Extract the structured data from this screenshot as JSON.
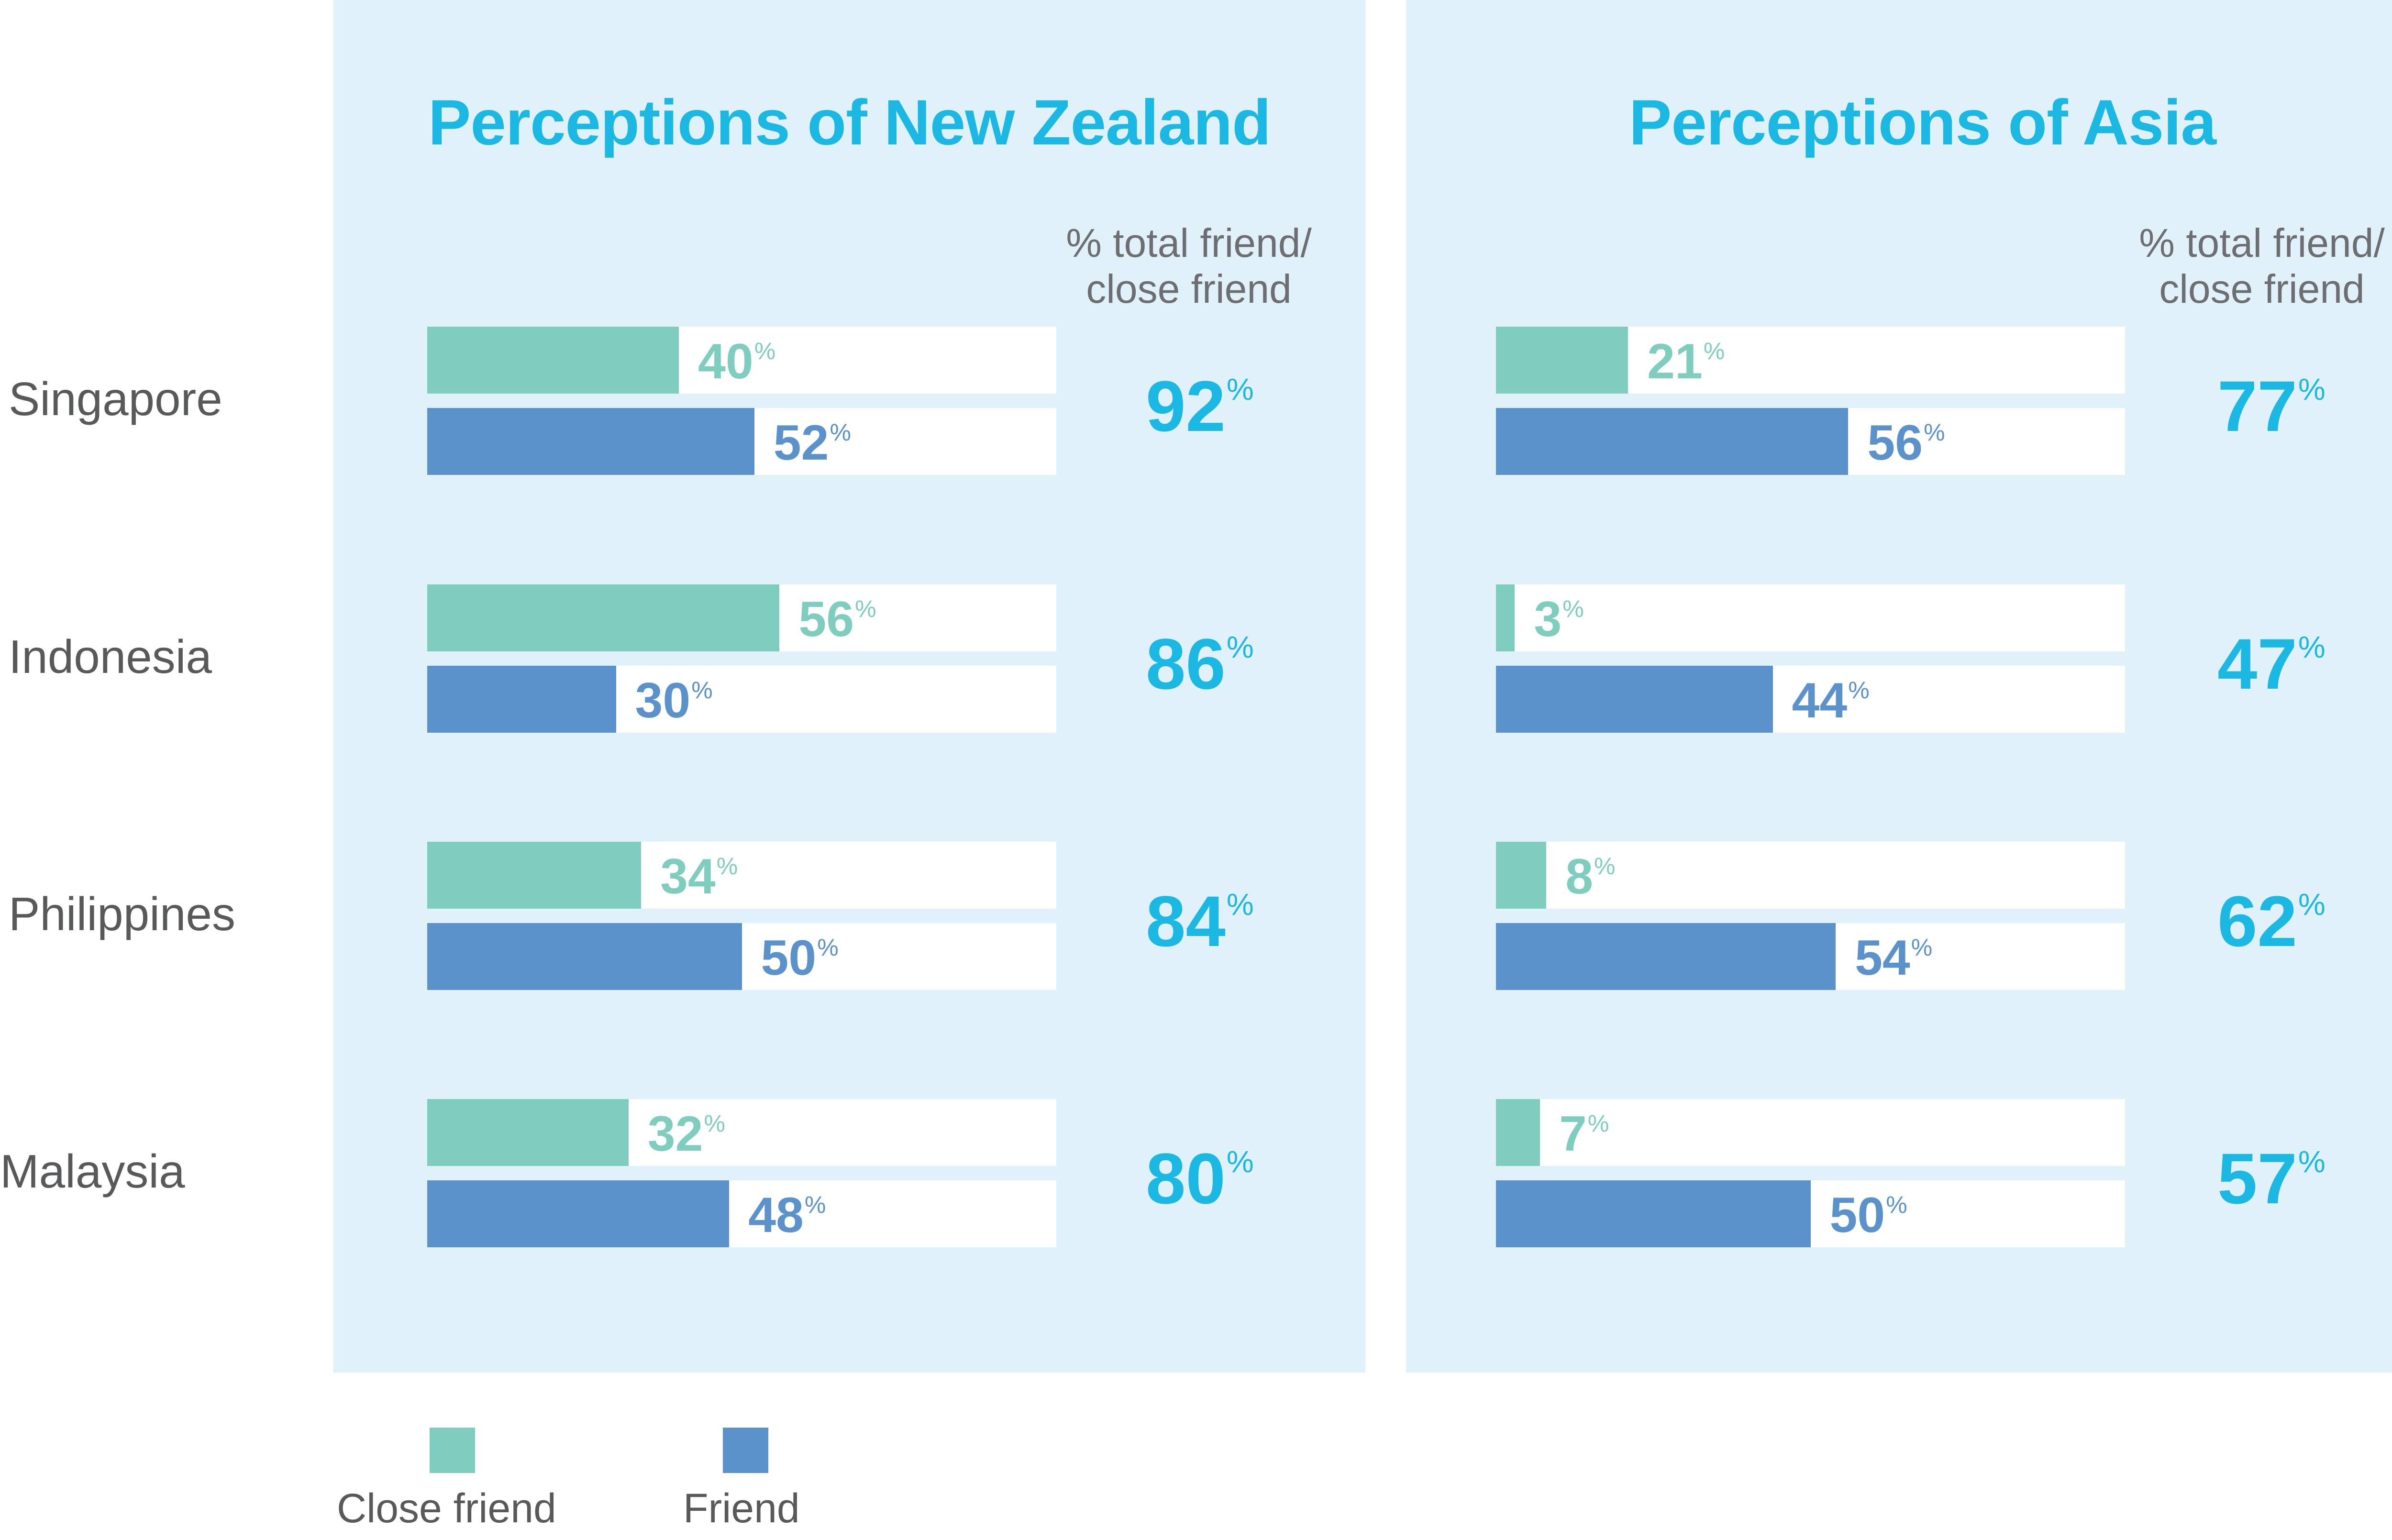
{
  "chart_data": [
    {
      "type": "bar",
      "title": "Perceptions of New Zealand",
      "total_header": "% total friend/ close friend",
      "categories": [
        "Singapore",
        "Indonesia",
        "Philippines",
        "Malaysia"
      ],
      "series": [
        {
          "name": "Close friend",
          "values": [
            40,
            56,
            34,
            32
          ]
        },
        {
          "name": "Friend",
          "values": [
            52,
            30,
            50,
            48
          ]
        }
      ],
      "totals": [
        92,
        86,
        84,
        80
      ],
      "unit": "%"
    },
    {
      "type": "bar",
      "title": "Perceptions of Asia",
      "total_header": "% total friend/ close friend",
      "categories": [
        "Singapore",
        "Indonesia",
        "Philippines",
        "Malaysia"
      ],
      "series": [
        {
          "name": "Close friend",
          "values": [
            21,
            3,
            8,
            7
          ]
        },
        {
          "name": "Friend",
          "values": [
            56,
            44,
            54,
            50
          ]
        }
      ],
      "totals": [
        77,
        47,
        62,
        57
      ],
      "unit": "%"
    }
  ],
  "countries": [
    "Singapore",
    "Indonesia",
    "Philippines",
    "Malaysia"
  ],
  "legend": [
    {
      "label": "Close friend",
      "color": "#7ecdbf"
    },
    {
      "label": "Friend",
      "color": "#5b92cc"
    }
  ],
  "colors": {
    "panel_bg": "#e0f1f9",
    "title": "#1ab8e2",
    "close_friend": "#7ecdbf",
    "friend": "#5b92cc",
    "text": "#58595b"
  }
}
